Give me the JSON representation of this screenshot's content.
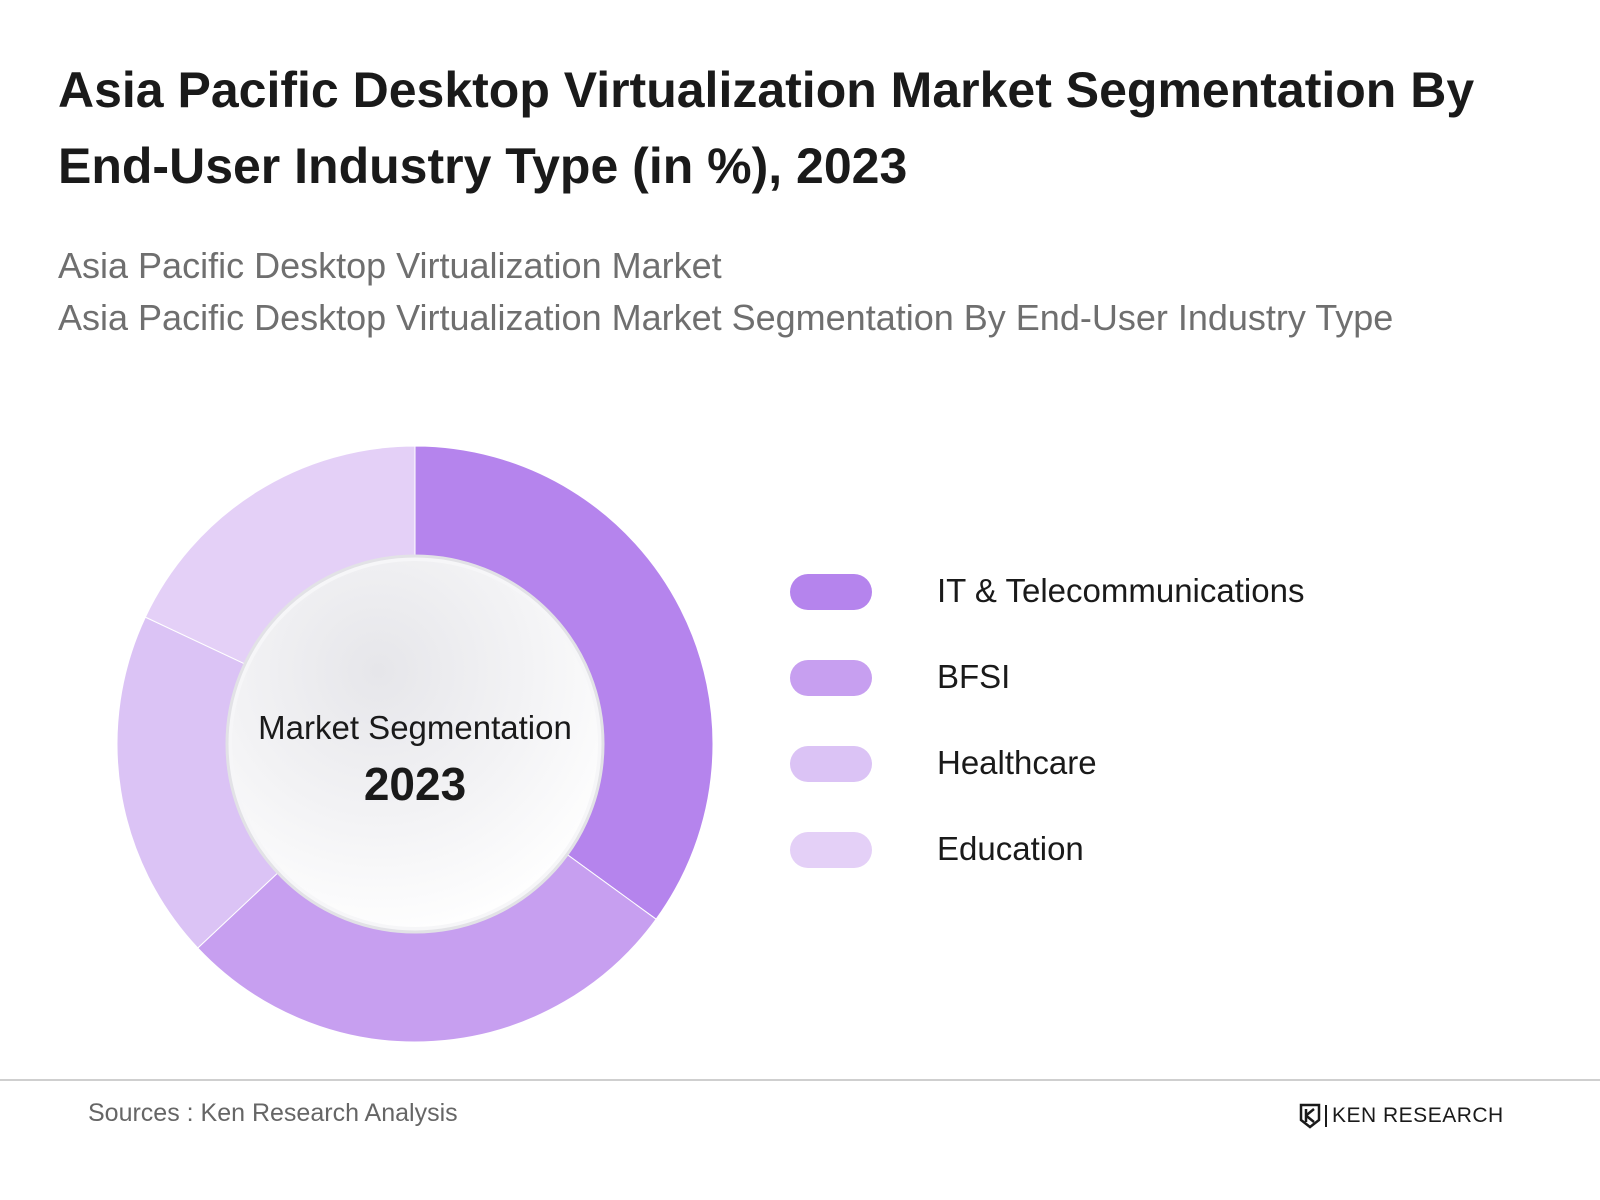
{
  "title": "Asia Pacific Desktop Virtualization Market Segmentation By End-User Industry Type (in %), 2023",
  "subtitle": {
    "line1": "Asia Pacific Desktop Virtualization Market",
    "line2": "Asia Pacific Desktop Virtualization Market Segmentation By End-User Industry Type"
  },
  "chart_data": {
    "type": "pie",
    "style": "donut",
    "categories": [
      "IT & Telecommunications",
      "BFSI",
      "Healthcare",
      "Education"
    ],
    "values": [
      35,
      28,
      19,
      18
    ],
    "colors": [
      "#b584ed",
      "#c79ff0",
      "#dbc3f5",
      "#e4d0f7"
    ],
    "center_label": "Market Segmentation",
    "center_year": "2023",
    "legend_position": "right"
  },
  "footer": {
    "source": "Sources : Ken Research Analysis",
    "logo_text": "KEN RESEARCH",
    "logo_icon": "ken-research-k-icon"
  }
}
